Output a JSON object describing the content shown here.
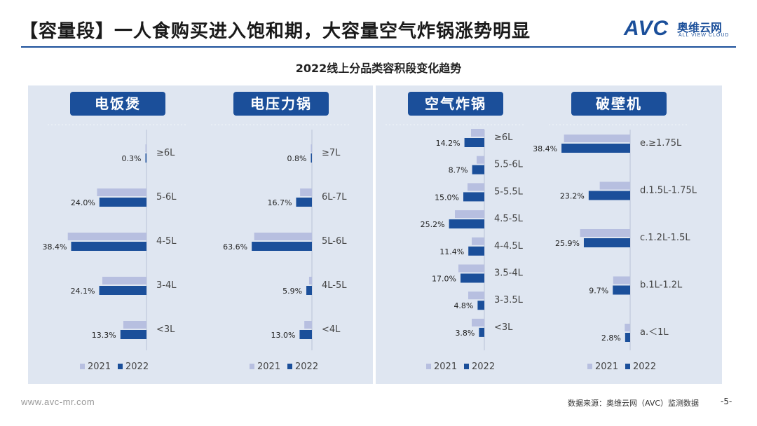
{
  "header": {
    "title": "【容量段】一人食购买进入饱和期，大容量空气炸锅涨势明显",
    "logo_text": "AVC",
    "logo_cn": "奥维云网",
    "logo_en": "ALL VIEW CLOUD"
  },
  "subtitle": "2022线上分品类容积段变化趋势",
  "footer": {
    "website": "www.avc-mr.com",
    "source": "数据来源：奥维云网（AVC）监测数据",
    "page": "-5-"
  },
  "colors": {
    "series_2021": "#b7bfe0",
    "series_2022": "#1b4f9a",
    "badge_bg": "#1b4f9a",
    "panel_bg": "#dfe6f1"
  },
  "chart_data": [
    {
      "type": "bar",
      "title": "电饭煲",
      "categories": [
        "≥6L",
        "5-6L",
        "4-5L",
        "3-4L",
        "<3L"
      ],
      "series": [
        {
          "name": "2021",
          "values": [
            0.4,
            25.2,
            40.1,
            22.5,
            11.8
          ]
        },
        {
          "name": "2022",
          "values": [
            0.3,
            24.0,
            38.4,
            24.1,
            13.3
          ]
        }
      ],
      "data_labels": [
        "0.3%",
        "24.0%",
        "38.4%",
        "24.1%",
        "13.3%"
      ],
      "legend": [
        "2021",
        "2022"
      ]
    },
    {
      "type": "bar",
      "title": "电压力锅",
      "categories": [
        "≥7L",
        "6L-7L",
        "5L-6L",
        "4L-5L",
        "<4L"
      ],
      "series": [
        {
          "name": "2021",
          "values": [
            0.6,
            12.5,
            61.0,
            3.0,
            8.0
          ]
        },
        {
          "name": "2022",
          "values": [
            0.8,
            16.7,
            63.6,
            5.9,
            13.0
          ]
        }
      ],
      "data_labels": [
        "0.8%",
        "16.7%",
        "63.6%",
        "5.9%",
        "13.0%"
      ],
      "legend": [
        "2021",
        "2022"
      ]
    },
    {
      "type": "bar",
      "title": "空气炸锅",
      "categories": [
        "≥6L",
        "5.5-6L",
        "5-5.5L",
        "4.5-5L",
        "4-4.5L",
        "3.5-4L",
        "3-3.5L",
        "<3L"
      ],
      "series": [
        {
          "name": "2021",
          "values": [
            9.5,
            5.5,
            12.0,
            21.0,
            9.0,
            18.5,
            11.5,
            9.0
          ]
        },
        {
          "name": "2022",
          "values": [
            14.2,
            8.7,
            15.0,
            25.2,
            11.4,
            17.0,
            4.8,
            3.8
          ]
        }
      ],
      "data_labels": [
        "14.2%",
        "8.7%",
        "15.0%",
        "25.2%",
        "11.4%",
        "17.0%",
        "4.8%",
        "3.8%"
      ],
      "legend": [
        "2021",
        "2022"
      ]
    },
    {
      "type": "bar",
      "title": "破壁机",
      "categories": [
        "e.≥1.75L",
        "d.1.5L-1.75L",
        "c.1.2L-1.5L",
        "b.1L-1.2L",
        "a.＜1L"
      ],
      "series": [
        {
          "name": "2021",
          "values": [
            37.0,
            17.0,
            28.0,
            9.5,
            3.0
          ]
        },
        {
          "name": "2022",
          "values": [
            38.4,
            23.2,
            25.9,
            9.7,
            2.8
          ]
        }
      ],
      "data_labels": [
        "38.4%",
        "23.2%",
        "25.9%",
        "9.7%",
        "2.8%"
      ],
      "legend": [
        "2021",
        "2022"
      ]
    }
  ]
}
